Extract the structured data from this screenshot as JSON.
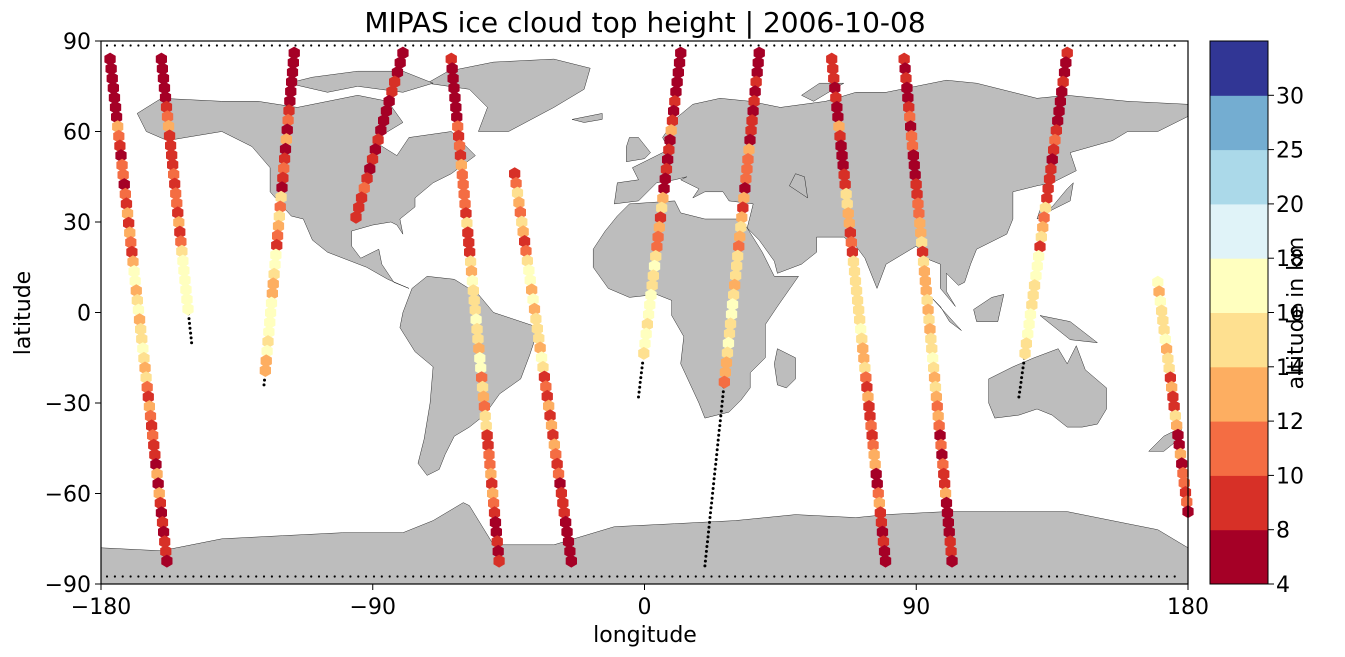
{
  "chart_data": {
    "type": "scatter",
    "title": "MIPAS ice cloud top height | 2006-10-08",
    "xlabel": "longitude",
    "ylabel": "latitude",
    "xlim": [
      -180,
      180
    ],
    "ylim": [
      -90,
      90
    ],
    "xticks": [
      "−180",
      "−90",
      "0",
      "90",
      "180"
    ],
    "xtick_values": [
      -180,
      -90,
      0,
      90,
      180
    ],
    "yticks": [
      "−90",
      "−60",
      "−30",
      "0",
      "30",
      "60",
      "90"
    ],
    "ytick_values": [
      -90,
      -60,
      -30,
      0,
      30,
      60,
      90
    ],
    "map": "world coastline (grey land)",
    "colorbar": {
      "label": "altitude in km",
      "boundaries": [
        4,
        8,
        10,
        12,
        14,
        16,
        18,
        20,
        25,
        30
      ],
      "tick_labels": [
        "4",
        "8",
        "10",
        "12",
        "14",
        "16",
        "18",
        "20",
        "25",
        "30"
      ],
      "colors": [
        "#a50026",
        "#d73027",
        "#f46d43",
        "#fdae61",
        "#fee090",
        "#ffffbf",
        "#e0f3f8",
        "#abd9e9",
        "#74add1",
        "#313695"
      ]
    },
    "colors": {
      "land": "#bdbdbd",
      "coast": "#000000",
      "track": "#000000"
    },
    "tracks": [
      {
        "lon_start": -177,
        "lat_start": 84,
        "lon_end": -158,
        "lat_end": -84,
        "cloud_segments": [
          [
            84,
            -84
          ]
        ]
      },
      {
        "lon_start": -160,
        "lat_start": 84,
        "lon_end": -150,
        "lat_end": -10,
        "cloud_segments": [
          [
            84,
            0
          ]
        ]
      },
      {
        "lon_start": -116,
        "lat_start": 86,
        "lon_end": -126,
        "lat_end": -24,
        "cloud_segments": [
          [
            86,
            -22
          ]
        ]
      },
      {
        "lon_start": -80,
        "lat_start": 86,
        "lon_end": -96,
        "lat_end": 30,
        "cloud_segments": [
          [
            86,
            30
          ]
        ]
      },
      {
        "lon_start": -64,
        "lat_start": 84,
        "lon_end": -48,
        "lat_end": -84,
        "cloud_segments": [
          [
            84,
            -84
          ]
        ]
      },
      {
        "lon_start": -43,
        "lat_start": 46,
        "lon_end": -24,
        "lat_end": -84,
        "cloud_segments": [
          [
            46,
            -84
          ]
        ]
      },
      {
        "lon_start": 12,
        "lat_start": 86,
        "lon_end": -2,
        "lat_end": -28,
        "cloud_segments": [
          [
            86,
            -16
          ]
        ]
      },
      {
        "lon_start": 38,
        "lat_start": 86,
        "lon_end": 20,
        "lat_end": -84,
        "cloud_segments": [
          [
            86,
            -24
          ]
        ]
      },
      {
        "lon_start": 62,
        "lat_start": 84,
        "lon_end": 80,
        "lat_end": -84,
        "cloud_segments": [
          [
            84,
            -84
          ]
        ]
      },
      {
        "lon_start": 86,
        "lat_start": 84,
        "lon_end": 102,
        "lat_end": -84,
        "cloud_segments": [
          [
            84,
            -84
          ]
        ]
      },
      {
        "lon_start": 140,
        "lat_start": 86,
        "lon_end": 124,
        "lat_end": -28,
        "cloud_segments": [
          [
            86,
            -14
          ]
        ]
      },
      {
        "lon_start": 170,
        "lat_start": 10,
        "lon_end": 180,
        "lat_end": -66,
        "cloud_segments": [
          [
            10,
            -66
          ]
        ]
      }
    ]
  }
}
